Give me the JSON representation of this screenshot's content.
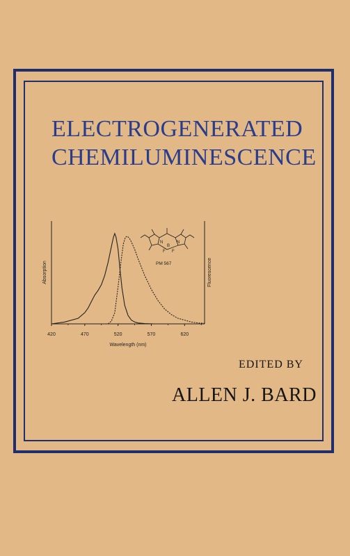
{
  "cover": {
    "title_line1": "ELECTROGENERATED",
    "title_line2": "CHEMILUMINESCENCE",
    "edited_by": "EDITED BY",
    "author": "ALLEN J. BARD"
  },
  "colors": {
    "background": "#e2b886",
    "frame": "#1f2f6e",
    "title": "#2a3d8c",
    "text": "#151515"
  },
  "chart_data": {
    "type": "line",
    "title": "",
    "xlabel": "Wavelength (nm)",
    "ylabel_left": "Absorption",
    "ylabel_right": "Fluorescence",
    "x_ticks": [
      "420",
      "470",
      "520",
      "570",
      "620"
    ],
    "xlim": [
      420,
      650
    ],
    "ylim": [
      0,
      1
    ],
    "grid": false,
    "annotation": "PM 567",
    "molecule_atoms": [
      "N",
      "N",
      "B",
      "F",
      "F"
    ],
    "series": [
      {
        "style": "solid",
        "x": [
          420,
          440,
          460,
          470,
          475,
          480,
          485,
          490,
          495,
          500,
          505,
          510,
          513,
          515,
          517,
          520,
          523,
          526,
          530,
          535,
          540,
          545,
          550,
          560,
          575,
          600
        ],
        "y": [
          0.0,
          0.02,
          0.06,
          0.12,
          0.17,
          0.24,
          0.31,
          0.36,
          0.42,
          0.52,
          0.66,
          0.83,
          0.93,
          0.97,
          0.93,
          0.8,
          0.58,
          0.38,
          0.2,
          0.09,
          0.04,
          0.02,
          0.01,
          0.003,
          0.0,
          0.0
        ]
      },
      {
        "style": "dashed",
        "x": [
          505,
          510,
          515,
          520,
          525,
          528,
          531,
          534,
          537,
          540,
          545,
          550,
          560,
          570,
          580,
          590,
          600,
          610,
          620,
          630,
          640,
          650
        ],
        "y": [
          0.0,
          0.03,
          0.12,
          0.4,
          0.7,
          0.86,
          0.93,
          0.94,
          0.92,
          0.88,
          0.8,
          0.7,
          0.52,
          0.37,
          0.25,
          0.16,
          0.1,
          0.06,
          0.04,
          0.02,
          0.01,
          0.005
        ]
      }
    ]
  }
}
